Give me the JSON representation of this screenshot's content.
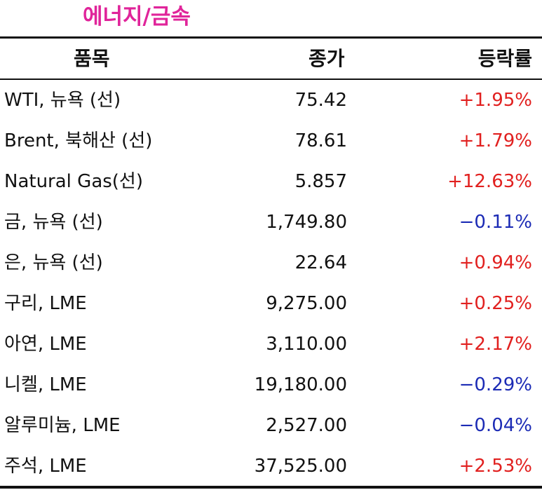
{
  "title": "에너지/금속",
  "header": {
    "item": "품목",
    "close": "종가",
    "change": "등락률"
  },
  "colors": {
    "title": "#e0249a",
    "up": "#e1201f",
    "down": "#1c2bb5"
  },
  "rows": [
    {
      "item": "WTI, 뉴욕 (선)",
      "close": "75.42",
      "change": "+1.95%",
      "direction": "up"
    },
    {
      "item": "Brent, 북해산 (선)",
      "close": "78.61",
      "change": "+1.79%",
      "direction": "up"
    },
    {
      "item": "Natural Gas(선)",
      "close": "5.857",
      "change": "+12.63%",
      "direction": "up"
    },
    {
      "item": "금, 뉴욕  (선)",
      "close": "1,749.80",
      "change": "−0.11%",
      "direction": "down"
    },
    {
      "item": "은, 뉴욕  (선)",
      "close": "22.64",
      "change": "+0.94%",
      "direction": "up"
    },
    {
      "item": "구리, LME",
      "close": "9,275.00",
      "change": "+0.25%",
      "direction": "up"
    },
    {
      "item": "아연, LME",
      "close": "3,110.00",
      "change": "+2.17%",
      "direction": "up"
    },
    {
      "item": "니켈, LME",
      "close": "19,180.00",
      "change": "−0.29%",
      "direction": "down"
    },
    {
      "item": "알루미늄, LME",
      "close": "2,527.00",
      "change": "−0.04%",
      "direction": "down"
    },
    {
      "item": "주석, LME",
      "close": "37,525.00",
      "change": "+2.53%",
      "direction": "up"
    }
  ]
}
